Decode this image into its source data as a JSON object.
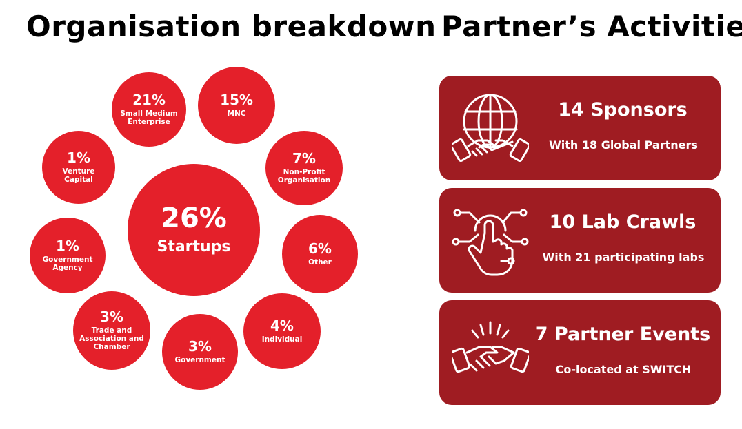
{
  "organisation": {
    "title": "Organisation breakdown",
    "bubbles": [
      {
        "percent": "26%",
        "label": "Startups"
      },
      {
        "percent": "21%",
        "label": "Small Medium\nEnterprise"
      },
      {
        "percent": "15%",
        "label": "MNC"
      },
      {
        "percent": "1%",
        "label": "Venture\nCapital"
      },
      {
        "percent": "7%",
        "label": "Non-Profit\nOrganisation"
      },
      {
        "percent": "1%",
        "label": "Government\nAgency"
      },
      {
        "percent": "6%",
        "label": "Other"
      },
      {
        "percent": "3%",
        "label": "Trade and\nAssociation and\nChamber"
      },
      {
        "percent": "4%",
        "label": "Individual"
      },
      {
        "percent": "3%",
        "label": "Government"
      }
    ]
  },
  "partners": {
    "title": "Partner’s Activities",
    "cards": [
      {
        "icon": "globe-handshake-icon",
        "headline": "14 Sponsors",
        "sub": "With 18 Global Partners"
      },
      {
        "icon": "hand-touch-icon",
        "headline": "10 Lab Crawls",
        "sub": "With 21 participating labs"
      },
      {
        "icon": "handshake-icon",
        "headline": "7 Partner Events",
        "sub": "Co-located at SWITCH"
      }
    ]
  },
  "colors": {
    "bubble": "#e4202a",
    "card": "#9f1c22",
    "text_light": "#ffffff",
    "title": "#000000"
  }
}
